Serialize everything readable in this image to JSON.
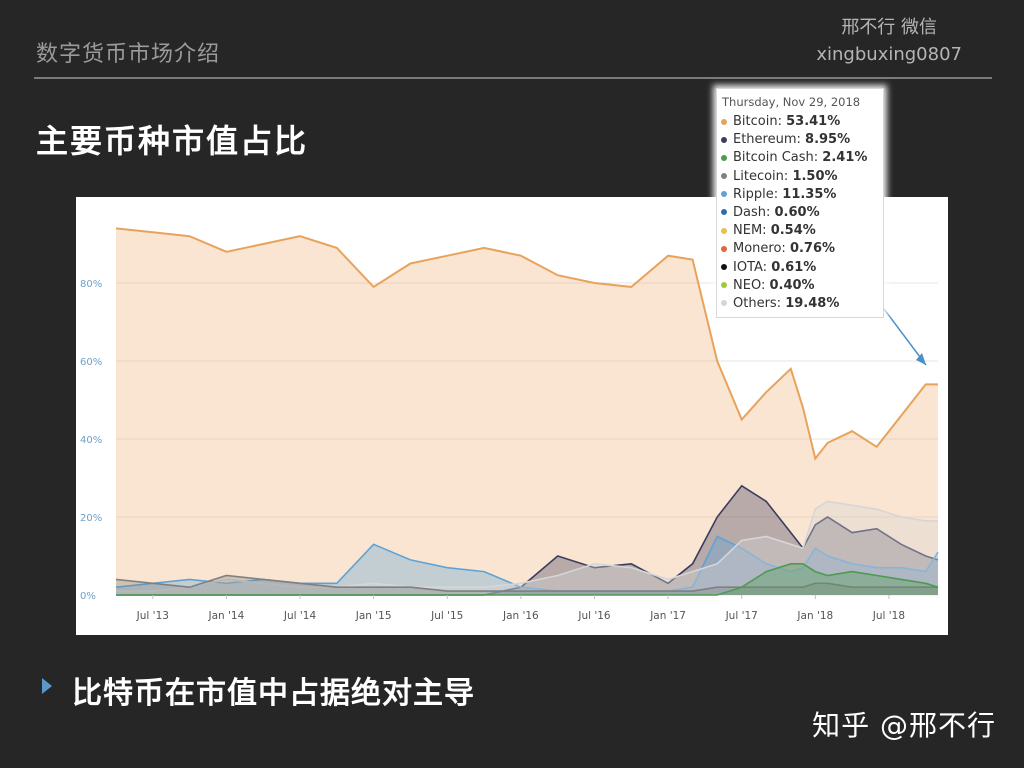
{
  "header": {
    "title": "数字货币市场介绍",
    "author_name": "邢不行 微信",
    "author_handle": "xingbuxing0807"
  },
  "slide": {
    "title": "主要币种市值占比",
    "bullet": "比特币在市值中占据绝对主导",
    "watermark": "知乎 @邢不行"
  },
  "tooltip": {
    "date": "Thursday, Nov 29, 2018",
    "items": [
      {
        "name": "Bitcoin:",
        "value": "53.41%",
        "color": "#e8a35b"
      },
      {
        "name": "Ethereum:",
        "value": "8.95%",
        "color": "#3c3d5e"
      },
      {
        "name": "Bitcoin Cash:",
        "value": "2.41%",
        "color": "#4f9a4f"
      },
      {
        "name": "Litecoin:",
        "value": "1.50%",
        "color": "#808080"
      },
      {
        "name": "Ripple:",
        "value": "11.35%",
        "color": "#5fa3d6"
      },
      {
        "name": "Dash:",
        "value": "0.60%",
        "color": "#2c6fb0"
      },
      {
        "name": "NEM:",
        "value": "0.54%",
        "color": "#e8c04a"
      },
      {
        "name": "Monero:",
        "value": "0.76%",
        "color": "#e0683a"
      },
      {
        "name": "IOTA:",
        "value": "0.61%",
        "color": "#111111"
      },
      {
        "name": "NEO:",
        "value": "0.40%",
        "color": "#9ccc3c"
      },
      {
        "name": "Others:",
        "value": "19.48%",
        "color": "#d6d6d6"
      }
    ]
  },
  "chart_data": {
    "type": "area",
    "x": [
      "2013-04",
      "2013-07",
      "2013-10",
      "2014-01",
      "2014-04",
      "2014-07",
      "2014-10",
      "2015-01",
      "2015-04",
      "2015-07",
      "2015-10",
      "2016-01",
      "2016-04",
      "2016-07",
      "2016-10",
      "2017-01",
      "2017-03",
      "2017-05",
      "2017-07",
      "2017-09",
      "2017-11",
      "2017-12",
      "2018-01",
      "2018-02",
      "2018-04",
      "2018-06",
      "2018-08",
      "2018-10",
      "2018-11"
    ],
    "x_ticks": [
      "Jul '13",
      "Jan '14",
      "Jul '14",
      "Jan '15",
      "Jul '15",
      "Jan '16",
      "Jul '16",
      "Jan '17",
      "Jul '17",
      "Jan '18",
      "Jul '18"
    ],
    "y_ticks": [
      "0%",
      "20%",
      "40%",
      "60%",
      "80%"
    ],
    "ylim": [
      0,
      100
    ],
    "grid": true,
    "series": [
      {
        "name": "Bitcoin",
        "color": "#e8a35b",
        "values": [
          94,
          93,
          92,
          88,
          90,
          92,
          89,
          79,
          85,
          87,
          89,
          87,
          82,
          80,
          79,
          87,
          86,
          60,
          45,
          52,
          58,
          48,
          35,
          39,
          42,
          38,
          46,
          54,
          54
        ]
      },
      {
        "name": "Ethereum",
        "color": "#3c3d5e",
        "values": [
          0,
          0,
          0,
          0,
          0,
          0,
          0,
          0,
          0,
          0,
          0,
          2,
          10,
          7,
          8,
          3,
          8,
          20,
          28,
          24,
          16,
          12,
          18,
          20,
          16,
          17,
          13,
          10,
          9
        ]
      },
      {
        "name": "Ripple",
        "color": "#5fa3d6",
        "values": [
          2,
          3,
          4,
          3,
          4,
          3,
          3,
          13,
          9,
          7,
          6,
          2,
          1,
          1,
          1,
          1,
          2,
          15,
          12,
          8,
          6,
          7,
          12,
          10,
          8,
          7,
          7,
          6,
          11
        ]
      },
      {
        "name": "Others",
        "color": "#d6d6d6",
        "values": [
          1,
          1,
          2,
          4,
          3,
          2,
          2,
          3,
          2,
          2,
          2,
          3,
          5,
          8,
          7,
          4,
          6,
          8,
          14,
          15,
          13,
          12,
          22,
          24,
          23,
          22,
          20,
          19,
          19
        ]
      },
      {
        "name": "Litecoin",
        "color": "#808080",
        "values": [
          4,
          3,
          2,
          5,
          4,
          3,
          2,
          2,
          2,
          1,
          1,
          1,
          1,
          1,
          1,
          1,
          1,
          2,
          2,
          2,
          2,
          2,
          3,
          3,
          2,
          2,
          2,
          2,
          2
        ]
      },
      {
        "name": "Bitcoin Cash",
        "color": "#4f9a4f",
        "values": [
          0,
          0,
          0,
          0,
          0,
          0,
          0,
          0,
          0,
          0,
          0,
          0,
          0,
          0,
          0,
          0,
          0,
          0,
          2,
          6,
          8,
          8,
          6,
          5,
          6,
          5,
          4,
          3,
          2
        ]
      }
    ]
  }
}
